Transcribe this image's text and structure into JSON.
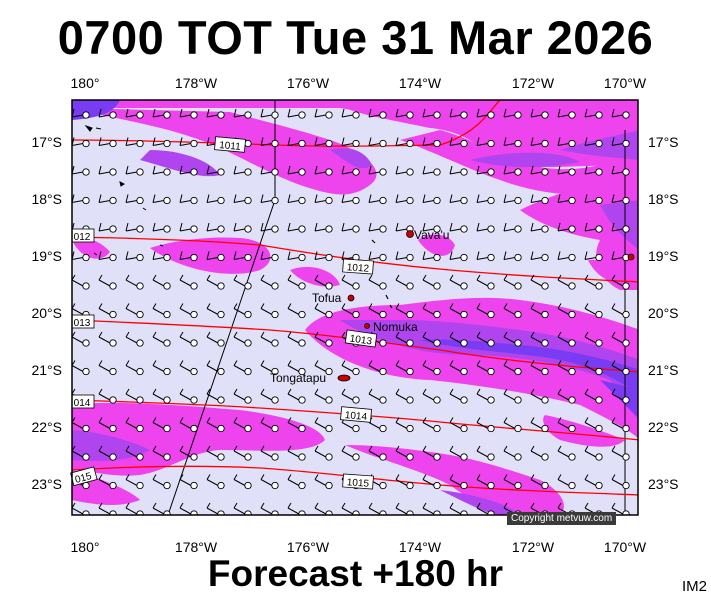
{
  "header": {
    "title": "0700 TOT Tue 31 Mar 2026"
  },
  "footer": {
    "forecast": "Forecast +180 hr",
    "product_code": "IM2",
    "copyright": "Copyright metvuw.com"
  },
  "map": {
    "longitude_labels": [
      "180°",
      "178°W",
      "176°W",
      "174°W",
      "172°W",
      "170°W"
    ],
    "latitude_labels": [
      "17°S",
      "18°S",
      "19°S",
      "20°S",
      "21°S",
      "22°S",
      "23°S"
    ],
    "colors": {
      "background": "#e0e0f8",
      "rain_light": "#ee44ee",
      "rain_heavy": "#7a3cf2",
      "isobar": "#ff0000",
      "land": "#cc0000"
    },
    "isobars": [
      {
        "label": "1011",
        "label_variant": "1011"
      },
      {
        "label": "1012",
        "label_variant": "012"
      },
      {
        "label": "1013",
        "label_variant": "013"
      },
      {
        "label": "1014",
        "label_variant": "014"
      },
      {
        "label": "1015",
        "label_variant": "015"
      }
    ],
    "places": [
      "Vava'u",
      "Tofua",
      "Nomuka",
      "Tongatapu"
    ]
  }
}
